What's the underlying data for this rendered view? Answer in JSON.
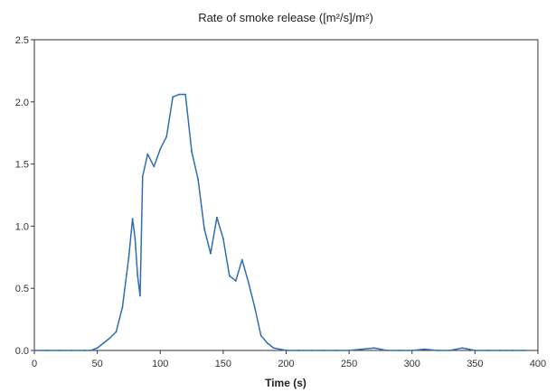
{
  "chart_data": {
    "type": "line",
    "title": "Rate of smoke release ([m²/s]/m²)",
    "xlabel": "Time (s)",
    "ylabel": "",
    "xlim": [
      0,
      400
    ],
    "ylim": [
      0,
      2.5
    ],
    "xticks": [
      "0",
      "50",
      "100",
      "150",
      "200",
      "250",
      "300",
      "350",
      "400"
    ],
    "yticks": [
      "0.0",
      "0.5",
      "1.0",
      "1.5",
      "2.0",
      "2.5"
    ],
    "grid": false,
    "legend": "none",
    "series": [
      {
        "color": "#2f6db3",
        "x": [
          0,
          10,
          20,
          30,
          40,
          45,
          50,
          55,
          60,
          65,
          70,
          75,
          78,
          80,
          82,
          84,
          86,
          90,
          95,
          100,
          105,
          110,
          115,
          120,
          125,
          130,
          135,
          140,
          145,
          150,
          155,
          160,
          165,
          170,
          175,
          180,
          185,
          190,
          200,
          210,
          220,
          230,
          240,
          250,
          260,
          270,
          280,
          290,
          300,
          310,
          320,
          330,
          340,
          350,
          360,
          370,
          380,
          390
        ],
        "y": [
          0.0,
          0.0,
          0.0,
          0.0,
          0.0,
          0.0,
          0.02,
          0.06,
          0.1,
          0.15,
          0.35,
          0.75,
          1.06,
          0.9,
          0.6,
          0.44,
          1.4,
          1.58,
          1.48,
          1.62,
          1.72,
          2.04,
          2.06,
          2.06,
          1.6,
          1.38,
          0.98,
          0.78,
          1.07,
          0.9,
          0.6,
          0.56,
          0.73,
          0.55,
          0.35,
          0.12,
          0.06,
          0.02,
          0.0,
          0.0,
          0.0,
          0.0,
          0.0,
          0.0,
          0.01,
          0.02,
          0.0,
          0.0,
          0.0,
          0.01,
          0.0,
          0.0,
          0.02,
          0.0,
          0.0,
          0.0,
          0.0,
          0.0
        ]
      }
    ]
  }
}
